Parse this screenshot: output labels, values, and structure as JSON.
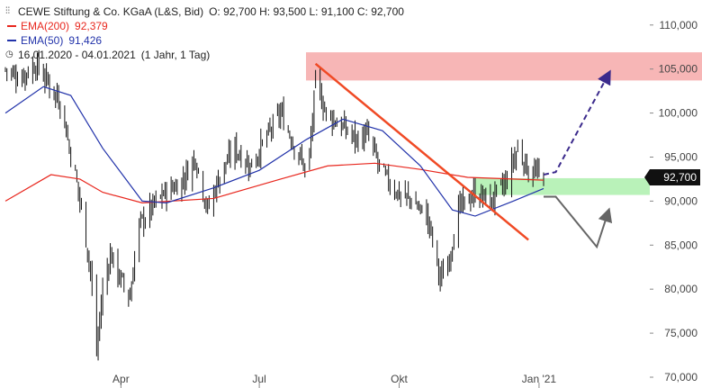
{
  "legend": {
    "title": "CEWE Stiftung & Co. KGaA (L&S, Bid)",
    "ohlc": "O: 92,700  H: 93,500  L: 91,100  C: 92,700",
    "ema200_label": "EMA(200)",
    "ema200_value": "92,379",
    "ema50_label": "EMA(50)",
    "ema50_value": "91,426",
    "date_range": "16.01.2020 - 04.01.2021",
    "period": "(1 Jahr, 1 Tag)"
  },
  "colors": {
    "ema200": "#e8271e",
    "ema50": "#2233aa",
    "candles": "#111111",
    "trendline": "#f04a25",
    "resistance_zone": "#f7b6b6",
    "support_zone": "#b9f2b9",
    "bull_arrow": "#3b2a8c",
    "bear_arrow": "#666666",
    "price_tag_bg": "#111111"
  },
  "chart_data": {
    "type": "candlestick",
    "x_ticks": [
      "Apr",
      "Jul",
      "Okt",
      "Jan '21"
    ],
    "y_ticks": [
      "70,000",
      "75,000",
      "80,000",
      "85,000",
      "90,000",
      "95,000",
      "100,000",
      "105,000",
      "110,000"
    ],
    "ylim": [
      70000,
      111000
    ],
    "last_price_label": "92,700",
    "ema200_last": 92379,
    "ema50_last": 91426,
    "close_path": [
      [
        "2020-01-16",
        105000
      ],
      [
        "2020-01-25",
        104000
      ],
      [
        "2020-02-05",
        105500
      ],
      [
        "2020-02-15",
        103000
      ],
      [
        "2020-02-22",
        101000
      ],
      [
        "2020-02-27",
        96000
      ],
      [
        "2020-03-03",
        92000
      ],
      [
        "2020-03-08",
        87000
      ],
      [
        "2020-03-12",
        82000
      ],
      [
        "2020-03-16",
        73000
      ],
      [
        "2020-03-20",
        80000
      ],
      [
        "2020-03-25",
        84000
      ],
      [
        "2020-04-01",
        81000
      ],
      [
        "2020-04-07",
        79000
      ],
      [
        "2020-04-12",
        87000
      ],
      [
        "2020-04-20",
        89000
      ],
      [
        "2020-04-30",
        91000
      ],
      [
        "2020-05-10",
        92000
      ],
      [
        "2020-05-20",
        95000
      ],
      [
        "2020-05-28",
        89000
      ],
      [
        "2020-06-05",
        93000
      ],
      [
        "2020-06-15",
        96000
      ],
      [
        "2020-06-25",
        94000
      ],
      [
        "2020-07-05",
        97000
      ],
      [
        "2020-07-15",
        100000
      ],
      [
        "2020-07-25",
        96000
      ],
      [
        "2020-08-02",
        93000
      ],
      [
        "2020-08-07",
        103500
      ],
      [
        "2020-08-14",
        100000
      ],
      [
        "2020-08-24",
        98500
      ],
      [
        "2020-09-03",
        97000
      ],
      [
        "2020-09-10",
        97500
      ],
      [
        "2020-09-20",
        93000
      ],
      [
        "2020-09-30",
        91000
      ],
      [
        "2020-10-10",
        90000
      ],
      [
        "2020-10-20",
        88000
      ],
      [
        "2020-10-28",
        81000
      ],
      [
        "2020-11-02",
        83000
      ],
      [
        "2020-11-09",
        89000
      ],
      [
        "2020-11-20",
        91000
      ],
      [
        "2020-11-30",
        90000
      ],
      [
        "2020-12-10",
        92000
      ],
      [
        "2020-12-18",
        96000
      ],
      [
        "2020-12-25",
        93500
      ],
      [
        "2021-01-04",
        92700
      ]
    ],
    "ema200": [
      [
        "2020-01-16",
        90000
      ],
      [
        "2020-02-15",
        93000
      ],
      [
        "2020-03-05",
        92500
      ],
      [
        "2020-03-20",
        91000
      ],
      [
        "2020-04-15",
        89800
      ],
      [
        "2020-06-01",
        90300
      ],
      [
        "2020-07-15",
        92500
      ],
      [
        "2020-08-15",
        94000
      ],
      [
        "2020-09-15",
        94300
      ],
      [
        "2020-10-15",
        93600
      ],
      [
        "2020-11-15",
        92700
      ],
      [
        "2021-01-04",
        92379
      ]
    ],
    "ema50": [
      [
        "2020-01-16",
        100000
      ],
      [
        "2020-02-10",
        103000
      ],
      [
        "2020-02-28",
        102000
      ],
      [
        "2020-03-20",
        96000
      ],
      [
        "2020-04-15",
        90000
      ],
      [
        "2020-05-01",
        89800
      ],
      [
        "2020-06-01",
        91500
      ],
      [
        "2020-07-01",
        93500
      ],
      [
        "2020-08-01",
        97000
      ],
      [
        "2020-08-25",
        99300
      ],
      [
        "2020-09-20",
        98000
      ],
      [
        "2020-10-15",
        94000
      ],
      [
        "2020-11-05",
        89000
      ],
      [
        "2020-11-20",
        88300
      ],
      [
        "2020-12-15",
        90000
      ],
      [
        "2021-01-04",
        91426
      ]
    ],
    "annotations": {
      "resistance_zone": [
        103700,
        106900
      ],
      "support_zone": [
        90700,
        92600
      ],
      "trendline": [
        [
          "2020-08-07",
          105600
        ],
        [
          "2020-12-25",
          85600
        ]
      ],
      "bull_scenario": [
        [
          "2021-01-04",
          93000
        ],
        [
          "2021-01-12",
          93300
        ],
        [
          "2021-02-15",
          104200
        ]
      ],
      "bear_scenario": [
        [
          "2021-01-04",
          90500
        ],
        [
          "2021-01-12",
          90500
        ],
        [
          "2021-02-08",
          84800
        ],
        [
          "2021-02-15",
          88500
        ]
      ]
    }
  }
}
